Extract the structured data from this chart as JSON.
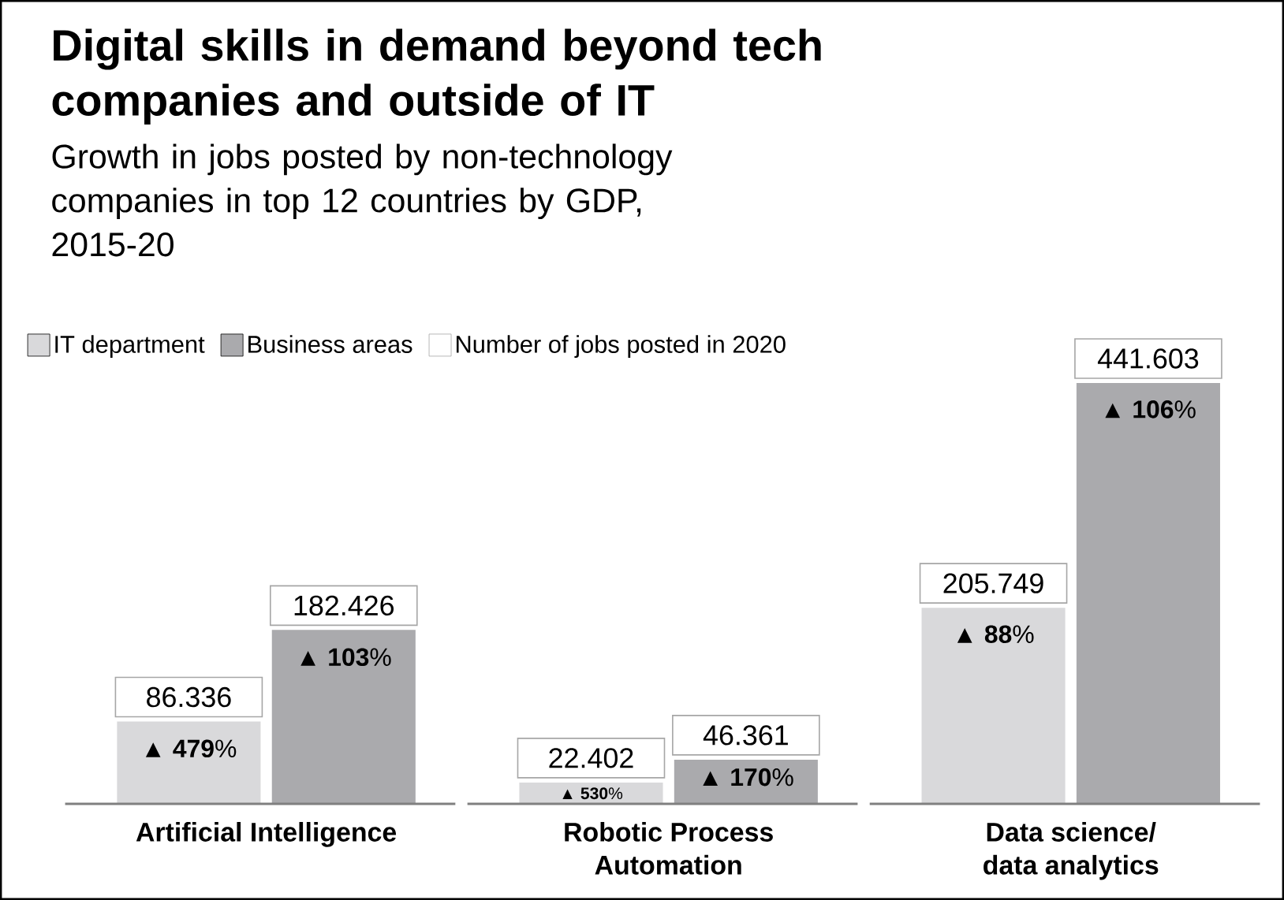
{
  "chart_data": {
    "type": "bar",
    "title": "Digital skills in demand beyond tech companies and outside of IT",
    "subtitle": "Growth in jobs posted by non-technology companies in top 12 countries by GDP, 2015-20",
    "categories": [
      "Artificial Intelligence",
      "Robotic Process Automation",
      "Data science/ data analytics"
    ],
    "series": [
      {
        "name": "IT department",
        "color": "#d9d9db",
        "values": [
          86.336,
          22.402,
          205.749
        ],
        "value_labels": [
          "86.336",
          "22.402",
          "205.749"
        ]
      },
      {
        "name": "Business areas",
        "color": "#aaaaad",
        "values": [
          182.426,
          46.361,
          441.603
        ],
        "value_labels": [
          "182.426",
          "46.361",
          "441.603"
        ]
      }
    ],
    "annotations": [
      "Number of jobs posted in 2020",
      {
        "text": "▲ **479**%",
        "x": "Artificial Intelligence",
        "y": 58
      },
      {
        "text": "▲ **103**%",
        "x": "Artificial Intelligence",
        "y": 154
      },
      {
        "text": "▲ **530**%",
        "x": "Robotic Process Automation",
        "y": 11
      },
      {
        "text": "▲ **170**%",
        "x": "Robotic Process Automation",
        "y": 28
      },
      {
        "text": "▲ **88**%",
        "x": "Data science/ data analytics",
        "y": 178
      },
      {
        "text": "▲ **106**%",
        "x": "Data science/ data analytics",
        "y": 414
      }
    ],
    "legend": "top left"
  }
}
